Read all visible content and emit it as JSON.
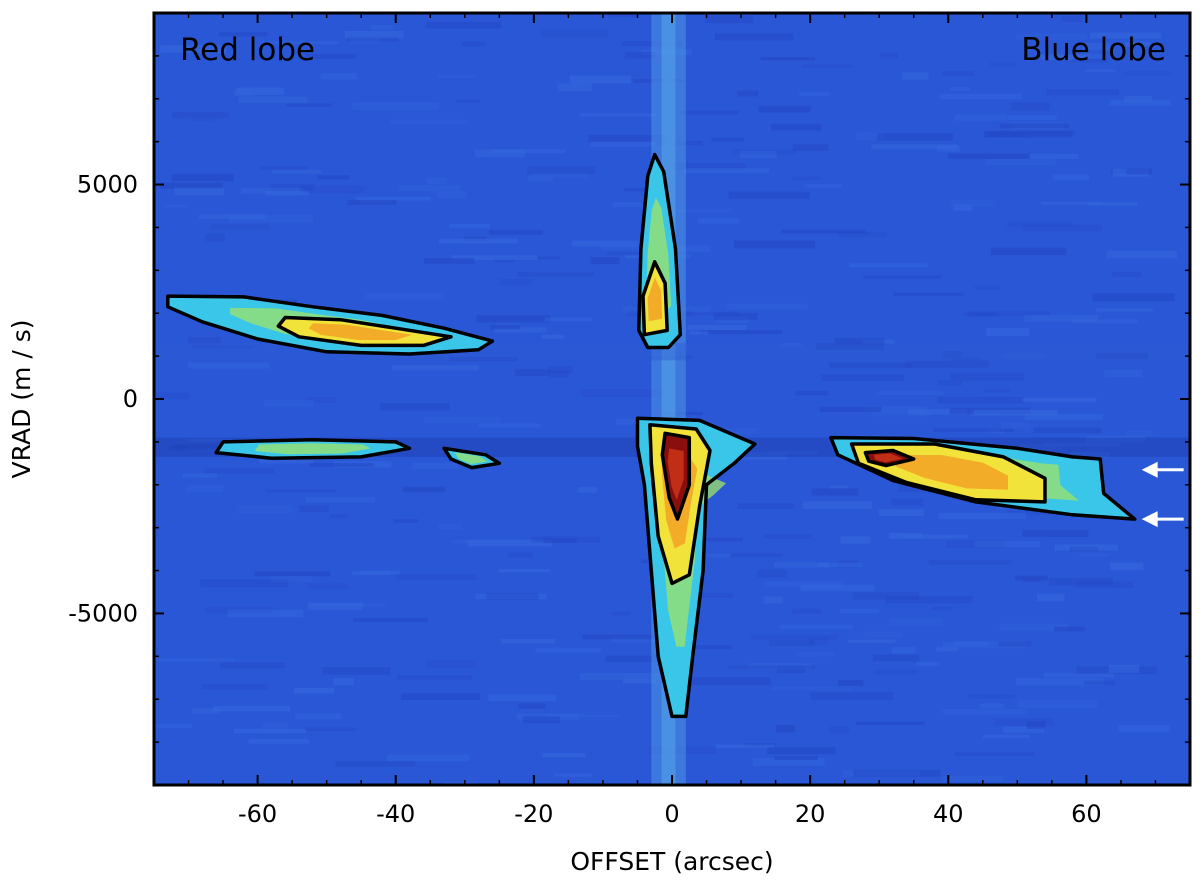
{
  "chart_data": {
    "type": "heatmap",
    "xlabel": "OFFSET (arcsec)",
    "ylabel": "VRAD (m / s)",
    "xlim": [
      -75,
      75
    ],
    "ylim": [
      -9000,
      9000
    ],
    "x_ticks": [
      -60,
      -40,
      -20,
      0,
      20,
      40,
      60
    ],
    "x_tick_labels": [
      "-60",
      "-40",
      "-20",
      "0",
      "20",
      "40",
      "60"
    ],
    "y_ticks": [
      -5000,
      0,
      5000
    ],
    "y_tick_labels": [
      "-5000",
      "0",
      "5000"
    ],
    "annotations": [
      {
        "text": "Red lobe",
        "position": "top-left"
      },
      {
        "text": "Blue lobe",
        "position": "top-right"
      }
    ],
    "arrows": [
      {
        "direction": "left",
        "x": 68,
        "y": -1650,
        "color": "#ffffff"
      },
      {
        "direction": "left",
        "x": 68,
        "y": -2800,
        "color": "#ffffff"
      }
    ],
    "colormap": [
      "#2a57d6",
      "#3a7ce8",
      "#39c6e8",
      "#9de36a",
      "#f2e33a",
      "#f39a22",
      "#d23a1a",
      "#8a0e0e"
    ],
    "background_color": "#2a57d6",
    "contour_levels": [
      1,
      2,
      3
    ],
    "grid": false,
    "structures": [
      {
        "name": "red lobe upper band",
        "contours": [
          {
            "level": 1,
            "points": [
              [
                -73,
                2400
              ],
              [
                -62,
                2380
              ],
              [
                -52,
                2150
              ],
              [
                -42,
                1950
              ],
              [
                -33,
                1650
              ],
              [
                -26,
                1350
              ],
              [
                -28,
                1150
              ],
              [
                -38,
                1050
              ],
              [
                -50,
                1100
              ],
              [
                -60,
                1400
              ],
              [
                -68,
                1800
              ],
              [
                -73,
                2150
              ]
            ]
          },
          {
            "level": 2,
            "points": [
              [
                -56,
                1900
              ],
              [
                -48,
                1850
              ],
              [
                -40,
                1650
              ],
              [
                -32,
                1450
              ],
              [
                -36,
                1250
              ],
              [
                -45,
                1250
              ],
              [
                -54,
                1450
              ],
              [
                -57,
                1700
              ]
            ]
          }
        ]
      },
      {
        "name": "red lobe lower band",
        "contours": [
          {
            "level": 1,
            "points": [
              [
                -65,
                -1000
              ],
              [
                -52,
                -950
              ],
              [
                -40,
                -1000
              ],
              [
                -38,
                -1150
              ],
              [
                -45,
                -1350
              ],
              [
                -58,
                -1380
              ],
              [
                -66,
                -1250
              ]
            ]
          },
          {
            "level": 1,
            "points": [
              [
                -33,
                -1150
              ],
              [
                -27,
                -1300
              ],
              [
                -25,
                -1500
              ],
              [
                -29,
                -1600
              ],
              [
                -32,
                -1400
              ]
            ]
          }
        ]
      },
      {
        "name": "central upper jet",
        "contours": [
          {
            "level": 1,
            "points": [
              [
                -2.5,
                5700
              ],
              [
                -1.2,
                5300
              ],
              [
                0.5,
                3500
              ],
              [
                1.2,
                1500
              ],
              [
                -0.5,
                1200
              ],
              [
                -3.5,
                1200
              ],
              [
                -4.8,
                1600
              ],
              [
                -4.5,
                3500
              ],
              [
                -3.5,
                5200
              ]
            ]
          },
          {
            "level": 2,
            "points": [
              [
                -2.5,
                3200
              ],
              [
                -1,
                2700
              ],
              [
                -0.7,
                1600
              ],
              [
                -4,
                1500
              ],
              [
                -4.2,
                2400
              ]
            ]
          }
        ]
      },
      {
        "name": "central lower jet",
        "contours": [
          {
            "level": 1,
            "points": [
              [
                -5,
                -450
              ],
              [
                4,
                -500
              ],
              [
                12,
                -1050
              ],
              [
                9,
                -1500
              ],
              [
                5,
                -2000
              ],
              [
                4.5,
                -4000
              ],
              [
                3,
                -6000
              ],
              [
                2,
                -7400
              ],
              [
                0,
                -7400
              ],
              [
                -2,
                -6000
              ],
              [
                -3,
                -4000
              ],
              [
                -4,
                -2000
              ],
              [
                -5,
                -1100
              ]
            ]
          },
          {
            "level": 2,
            "points": [
              [
                -3.2,
                -600
              ],
              [
                3.5,
                -700
              ],
              [
                5.5,
                -1200
              ],
              [
                4,
                -2500
              ],
              [
                2.5,
                -4100
              ],
              [
                0,
                -4300
              ],
              [
                -2,
                -3200
              ],
              [
                -3,
                -1500
              ]
            ]
          },
          {
            "level": 3,
            "points": [
              [
                -1,
                -800
              ],
              [
                2.5,
                -900
              ],
              [
                2.5,
                -2000
              ],
              [
                0.8,
                -2800
              ],
              [
                -0.4,
                -2300
              ],
              [
                -1.4,
                -1300
              ]
            ]
          }
        ]
      },
      {
        "name": "blue lobe band",
        "contours": [
          {
            "level": 1,
            "points": [
              [
                23,
                -900
              ],
              [
                35,
                -920
              ],
              [
                50,
                -1150
              ],
              [
                58,
                -1350
              ],
              [
                62,
                -1400
              ],
              [
                62.5,
                -2200
              ],
              [
                67,
                -2800
              ],
              [
                58,
                -2700
              ],
              [
                44,
                -2400
              ],
              [
                32,
                -1900
              ],
              [
                24,
                -1300
              ]
            ]
          },
          {
            "level": 2,
            "points": [
              [
                26,
                -1050
              ],
              [
                38,
                -1050
              ],
              [
                48,
                -1350
              ],
              [
                54,
                -1850
              ],
              [
                54,
                -2400
              ],
              [
                44,
                -2350
              ],
              [
                34,
                -1950
              ],
              [
                27,
                -1500
              ]
            ]
          },
          {
            "level": 3,
            "points": [
              [
                28,
                -1250
              ],
              [
                32,
                -1200
              ],
              [
                35,
                -1400
              ],
              [
                31,
                -1550
              ],
              [
                28.5,
                -1450
              ]
            ]
          }
        ]
      }
    ]
  }
}
